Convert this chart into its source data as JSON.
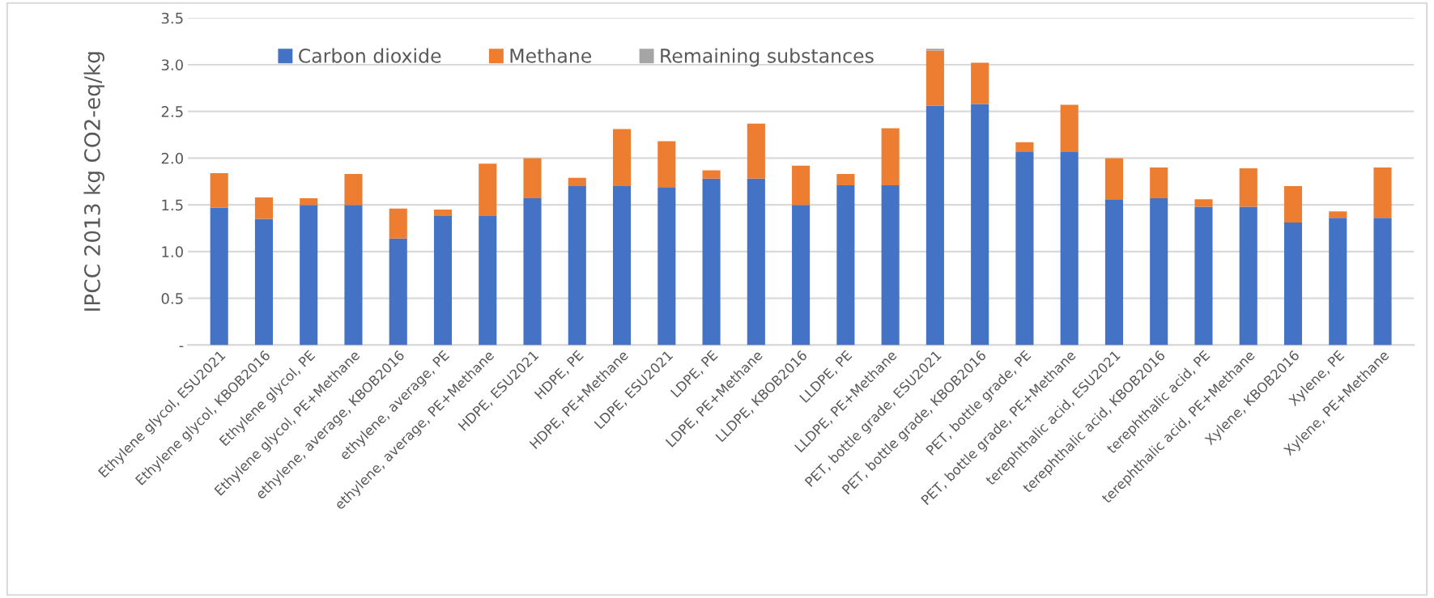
{
  "chart_data": {
    "type": "bar",
    "stacked": true,
    "ylabel": "IPCC 2013 kg CO2-eq/kg",
    "categories": [
      "Ethylene glycol, ESU2021",
      "Ethylene glycol, KBOB2016",
      "Ethylene glycol, PE",
      "Ethylene glycol, PE+Methane",
      "ethylene, average, KBOB2016",
      "ethylene, average, PE",
      "ethylene, average, PE+Methane",
      "HDPE, ESU2021",
      "HDPE, PE",
      "HDPE, PE+Methane",
      "LDPE, ESU2021",
      "LDPE, PE",
      "LDPE, PE+Methane",
      "LLDPE, KBOB2016",
      "LLDPE, PE",
      "LLDPE, PE+Methane",
      "PET, bottle grade, ESU2021",
      "PET, bottle grade, KBOB2016",
      "PET, bottle grade, PE",
      "PET, bottle grade, PE+Methane",
      "terephthalic acid, ESU2021",
      "terephthalic acid, KBOB2016",
      "terephthalic acid, PE",
      "terephthalic acid, PE+Methane",
      "Xylene, KBOB2016",
      "Xylene, PE",
      "Xylene, PE+Methane"
    ],
    "series": [
      {
        "name": "Carbon dioxide",
        "color": "#4472c4",
        "values": [
          1.47,
          1.35,
          1.5,
          1.5,
          1.14,
          1.38,
          1.38,
          1.57,
          1.7,
          1.7,
          1.69,
          1.78,
          1.78,
          1.5,
          1.71,
          1.71,
          2.56,
          2.58,
          2.07,
          2.07,
          1.56,
          1.57,
          1.48,
          1.48,
          1.31,
          1.36,
          1.36
        ]
      },
      {
        "name": "Methane",
        "color": "#ed7d31",
        "values": [
          0.37,
          0.23,
          0.07,
          0.33,
          0.32,
          0.07,
          0.56,
          0.43,
          0.09,
          0.61,
          0.49,
          0.09,
          0.59,
          0.42,
          0.12,
          0.61,
          0.59,
          0.44,
          0.1,
          0.5,
          0.44,
          0.33,
          0.08,
          0.41,
          0.39,
          0.07,
          0.54
        ]
      },
      {
        "name": "Remaining substances",
        "color": "#a5a5a5",
        "values": [
          null,
          null,
          null,
          null,
          null,
          null,
          null,
          null,
          null,
          null,
          null,
          null,
          null,
          null,
          null,
          null,
          0.02,
          null,
          null,
          null,
          null,
          null,
          null,
          null,
          null,
          null,
          null
        ]
      }
    ],
    "ylim": [
      0,
      3.5
    ],
    "yticks": [
      {
        "value": 0,
        "label": "-"
      },
      {
        "value": 0.5,
        "label": "0.5"
      },
      {
        "value": 1.0,
        "label": "1.0"
      },
      {
        "value": 1.5,
        "label": "1.5"
      },
      {
        "value": 2.0,
        "label": "2.0"
      },
      {
        "value": 2.5,
        "label": "2.5"
      },
      {
        "value": 3.0,
        "label": "3.0"
      },
      {
        "value": 3.5,
        "label": "3.5"
      }
    ],
    "grid": "y",
    "legend": "top left"
  }
}
